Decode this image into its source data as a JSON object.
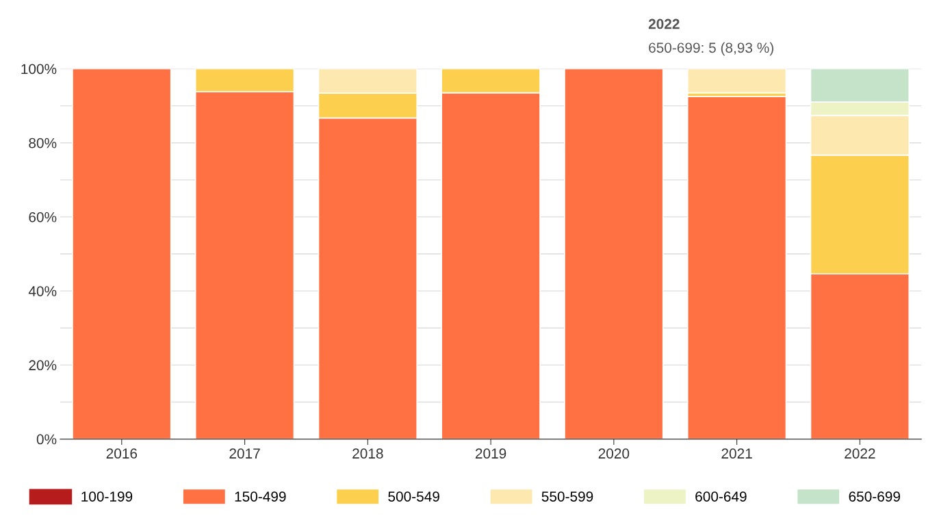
{
  "chart_data": {
    "type": "bar",
    "stacked": true,
    "categories": [
      "2016",
      "2017",
      "2018",
      "2019",
      "2020",
      "2021",
      "2022"
    ],
    "series": [
      {
        "name": "100-199",
        "color": "#b71c1c",
        "values": [
          null,
          null,
          null,
          null,
          null,
          null,
          null
        ]
      },
      {
        "name": "150-499",
        "color": "#ff7043",
        "values": [
          100,
          93.8,
          86.7,
          93.5,
          100,
          92.5,
          44.6
        ]
      },
      {
        "name": "500-549",
        "color": "#fcd04e",
        "values": [
          null,
          6.2,
          6.7,
          6.5,
          null,
          1.0,
          32.1
        ]
      },
      {
        "name": "550-599",
        "color": "#fde9b0",
        "values": [
          null,
          null,
          6.6,
          null,
          null,
          6.5,
          10.7
        ]
      },
      {
        "name": "600-649",
        "color": "#eef3c6",
        "values": [
          null,
          null,
          null,
          null,
          null,
          null,
          3.6
        ]
      },
      {
        "name": "650-699",
        "color": "#c5e3c8",
        "values": [
          null,
          null,
          null,
          null,
          null,
          null,
          9.0
        ]
      }
    ],
    "ylim": [
      0,
      100
    ],
    "yticks": [
      {
        "value": 0,
        "label": "0%"
      },
      {
        "value": 10,
        "label": null
      },
      {
        "value": 20,
        "label": "20%"
      },
      {
        "value": 30,
        "label": null
      },
      {
        "value": 40,
        "label": "40%"
      },
      {
        "value": 50,
        "label": null
      },
      {
        "value": 60,
        "label": "60%"
      },
      {
        "value": 70,
        "label": null
      },
      {
        "value": 80,
        "label": "80%"
      },
      {
        "value": 90,
        "label": null
      },
      {
        "value": 100,
        "label": "100%"
      }
    ],
    "grid": "y",
    "legend": "bottom",
    "annotations": [
      "2022",
      "650-699: 5 (8,93 %)"
    ]
  }
}
